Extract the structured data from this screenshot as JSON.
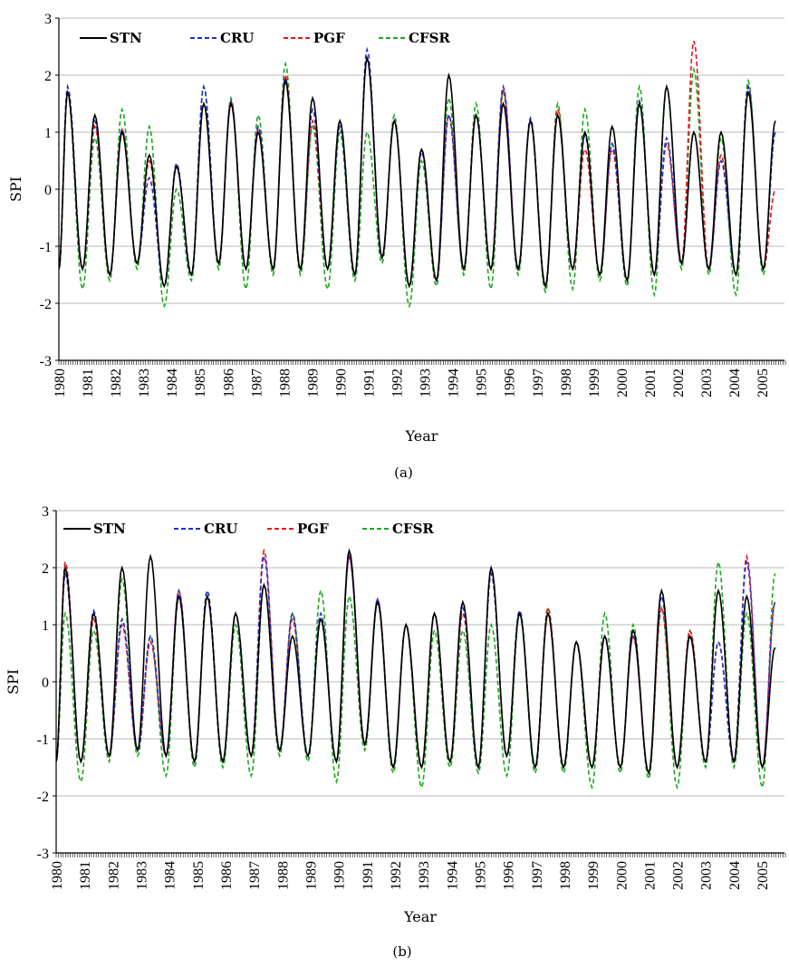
{
  "chart_data": [
    {
      "type": "line",
      "id": "a",
      "caption": "(a)",
      "xlabel": "Year",
      "ylabel": "SPI",
      "ylim": [
        -3,
        3
      ],
      "xlim": [
        1980,
        2005.8
      ],
      "yticks": [
        -3,
        -2,
        -1,
        0,
        1,
        2,
        3
      ],
      "xticks": [
        "1980",
        "1981",
        "1982",
        "1983",
        "1984",
        "1985",
        "1986",
        "1987",
        "1988",
        "1989",
        "1990",
        "1991",
        "1992",
        "1993",
        "1994",
        "1995",
        "1996",
        "1997",
        "1998",
        "1999",
        "2000",
        "2001",
        "2002",
        "2003",
        "2004",
        "2005"
      ],
      "grid": true,
      "legend_position": "top-left",
      "peaks": [
        [
          1.7,
          -1.4
        ],
        [
          1.3,
          -1.5
        ],
        [
          1.0,
          -1.3
        ],
        [
          0.6,
          -1.7
        ],
        [
          0.4,
          -1.5
        ],
        [
          1.5,
          -1.3
        ],
        [
          1.5,
          -1.4
        ],
        [
          1.0,
          -1.4
        ],
        [
          1.9,
          -1.4
        ],
        [
          1.6,
          -1.4
        ],
        [
          1.2,
          -1.5
        ],
        [
          2.3,
          -1.2
        ],
        [
          1.2,
          -1.7
        ],
        [
          0.7,
          -1.6
        ],
        [
          2.0,
          -1.4
        ],
        [
          1.3,
          -1.4
        ],
        [
          1.5,
          -1.4
        ],
        [
          1.2,
          -1.7
        ],
        [
          1.3,
          -1.4
        ],
        [
          1.0,
          -1.5
        ],
        [
          1.1,
          -1.6
        ],
        [
          1.5,
          -1.5
        ],
        [
          1.8,
          -1.3
        ],
        [
          1.0,
          -1.4
        ],
        [
          1.0,
          -1.5
        ],
        [
          1.7,
          -1.4
        ],
        [
          1.2,
          null
        ]
      ],
      "series": [
        {
          "name": "STN",
          "color": "#000000",
          "dash": "",
          "offset": [
            0.0,
            0.0,
            0.0,
            0.0,
            0.0,
            0.0,
            0.0,
            0.0,
            0.0,
            0.0,
            0.0,
            0.0,
            0.0,
            0.0,
            0.0,
            0.0,
            0.0,
            0.0,
            0.0,
            0.0,
            0.0,
            0.0,
            0.0,
            0.0,
            0.0,
            0.0,
            0.0
          ]
        },
        {
          "name": "CRU",
          "color": "#1f2fd0",
          "dash": "5,3",
          "offset": [
            0.1,
            -0.1,
            0.05,
            -0.4,
            0.05,
            0.3,
            0.05,
            0.1,
            0.05,
            -0.2,
            -0.1,
            0.15,
            0.0,
            -0.05,
            -0.7,
            0.0,
            0.3,
            0.05,
            0.0,
            -0.05,
            -0.3,
            0.05,
            -0.9,
            0.0,
            -0.5,
            0.1,
            -0.2
          ]
        },
        {
          "name": "PGF",
          "color": "#e8161b",
          "dash": "5,3",
          "offset": [
            0.1,
            -0.2,
            0.05,
            -0.1,
            0.05,
            0.0,
            0.05,
            0.05,
            0.1,
            -0.4,
            0.0,
            0.0,
            0.0,
            0.0,
            -0.7,
            0.0,
            0.25,
            0.0,
            0.1,
            -0.3,
            -0.4,
            0.0,
            -1.0,
            1.6,
            -0.4,
            0.1,
            -1.2
          ]
        },
        {
          "name": "CFSR",
          "color": "#1ca81c",
          "dash": "5,3",
          "offset": [
            0.0,
            -0.4,
            0.4,
            0.5,
            -0.4,
            0.3,
            0.1,
            0.3,
            0.3,
            -0.5,
            -0.2,
            -1.3,
            0.1,
            -0.2,
            -0.4,
            0.2,
            0.2,
            0.0,
            0.2,
            0.4,
            -0.3,
            0.3,
            0.0,
            1.1,
            -0.1,
            0.2,
            -0.2
          ]
        }
      ]
    },
    {
      "type": "line",
      "id": "b",
      "caption": "(b)",
      "xlabel": "Year",
      "ylabel": "SPI",
      "ylim": [
        -3,
        3
      ],
      "xlim": [
        1980,
        2005.8
      ],
      "yticks": [
        -3,
        -2,
        -1,
        0,
        1,
        2,
        3
      ],
      "xticks": [
        "1980",
        "1981",
        "1982",
        "1983",
        "1984",
        "1985",
        "1986",
        "1987",
        "1988",
        "1989",
        "1990",
        "1991",
        "1992",
        "1993",
        "1994",
        "1995",
        "1996",
        "1997",
        "1998",
        "1999",
        "2000",
        "2001",
        "2002",
        "2003",
        "2004",
        "2005"
      ],
      "grid": true,
      "legend_position": "top-left",
      "peaks": [
        [
          2.0,
          -1.4
        ],
        [
          1.2,
          -1.3
        ],
        [
          2.0,
          -1.2
        ],
        [
          2.2,
          -1.3
        ],
        [
          1.5,
          -1.4
        ],
        [
          1.5,
          -1.4
        ],
        [
          1.2,
          -1.3
        ],
        [
          1.7,
          -1.2
        ],
        [
          0.8,
          -1.3
        ],
        [
          1.1,
          -1.4
        ],
        [
          2.3,
          -1.1
        ],
        [
          1.4,
          -1.5
        ],
        [
          1.0,
          -1.5
        ],
        [
          1.2,
          -1.4
        ],
        [
          1.4,
          -1.5
        ],
        [
          2.0,
          -1.3
        ],
        [
          1.2,
          -1.5
        ],
        [
          1.2,
          -1.5
        ],
        [
          0.7,
          -1.5
        ],
        [
          0.8,
          -1.5
        ],
        [
          0.9,
          -1.6
        ],
        [
          1.6,
          -1.5
        ],
        [
          0.8,
          -1.4
        ],
        [
          1.6,
          -1.4
        ],
        [
          1.5,
          -1.5
        ],
        [
          0.6,
          null
        ]
      ],
      "series": [
        {
          "name": "STN",
          "color": "#000000",
          "dash": "",
          "offset": [
            0.0,
            0.0,
            0.0,
            0.0,
            0.0,
            0.0,
            0.0,
            0.0,
            0.0,
            0.0,
            0.0,
            0.0,
            0.0,
            0.0,
            0.0,
            0.0,
            0.0,
            0.0,
            0.0,
            0.0,
            0.0,
            0.0,
            0.0,
            0.0,
            0.0,
            0.0
          ]
        },
        {
          "name": "CRU",
          "color": "#1f2fd0",
          "dash": "5,3",
          "offset": [
            -0.1,
            0.05,
            -0.9,
            -1.4,
            0.1,
            0.1,
            0.0,
            0.5,
            0.4,
            0.1,
            -0.1,
            0.05,
            0.0,
            0.0,
            -0.1,
            -0.1,
            0.05,
            0.0,
            0.0,
            0.0,
            -0.1,
            -0.1,
            0.0,
            -0.9,
            0.6,
            0.8
          ]
        },
        {
          "name": "PGF",
          "color": "#e8161b",
          "dash": "5,3",
          "offset": [
            0.1,
            -0.1,
            -1.0,
            -1.5,
            0.1,
            0.0,
            0.0,
            0.6,
            0.3,
            0.0,
            -0.1,
            0.05,
            0.0,
            0.0,
            -0.2,
            -0.1,
            0.05,
            0.1,
            0.0,
            0.0,
            -0.1,
            -0.3,
            0.1,
            -0.9,
            0.7,
            0.8
          ]
        },
        {
          "name": "CFSR",
          "color": "#1ca81c",
          "dash": "5,3",
          "offset": [
            -0.8,
            -0.3,
            -0.2,
            -1.4,
            0.0,
            0.0,
            -0.2,
            0.0,
            0.4,
            0.5,
            -0.8,
            0.0,
            0.0,
            -0.3,
            -0.5,
            -1.0,
            0.0,
            0.1,
            0.0,
            0.4,
            0.1,
            -0.3,
            0.1,
            0.5,
            -0.3,
            1.3
          ]
        }
      ]
    }
  ]
}
